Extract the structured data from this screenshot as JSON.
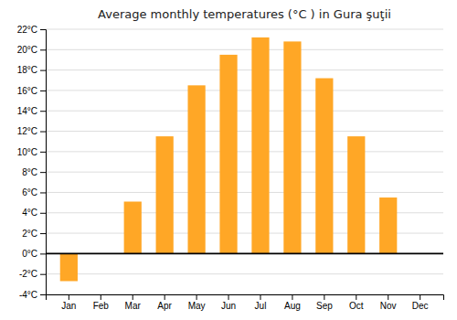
{
  "chart_data": {
    "type": "bar",
    "title": "Average monthly temperatures (°C ) in Gura şuţii",
    "categories": [
      "Jan",
      "Feb",
      "Mar",
      "Apr",
      "May",
      "Jun",
      "Jul",
      "Aug",
      "Sep",
      "Oct",
      "Nov",
      "Dec"
    ],
    "values": [
      -2.7,
      0,
      5.1,
      11.5,
      16.5,
      19.5,
      21.2,
      20.8,
      17.2,
      11.5,
      5.5,
      0
    ],
    "color": "#FFA726",
    "ylim": [
      -4,
      22
    ],
    "yticks": [
      {
        "value": -4,
        "label": "-4°C"
      },
      {
        "value": -2,
        "label": "-2°C"
      },
      {
        "value": 0,
        "label": "0°C"
      },
      {
        "value": 2,
        "label": "2°C"
      },
      {
        "value": 4,
        "label": "4°C"
      },
      {
        "value": 6,
        "label": "6°C"
      },
      {
        "value": 8,
        "label": "8°C"
      },
      {
        "value": 10,
        "label": "10°C"
      },
      {
        "value": 12,
        "label": "12°C"
      },
      {
        "value": 14,
        "label": "14°C"
      },
      {
        "value": 16,
        "label": "16°C"
      },
      {
        "value": 18,
        "label": "18°C"
      },
      {
        "value": 20,
        "label": "20°C"
      },
      {
        "value": 22,
        "label": "22°C"
      }
    ],
    "grid": true
  }
}
